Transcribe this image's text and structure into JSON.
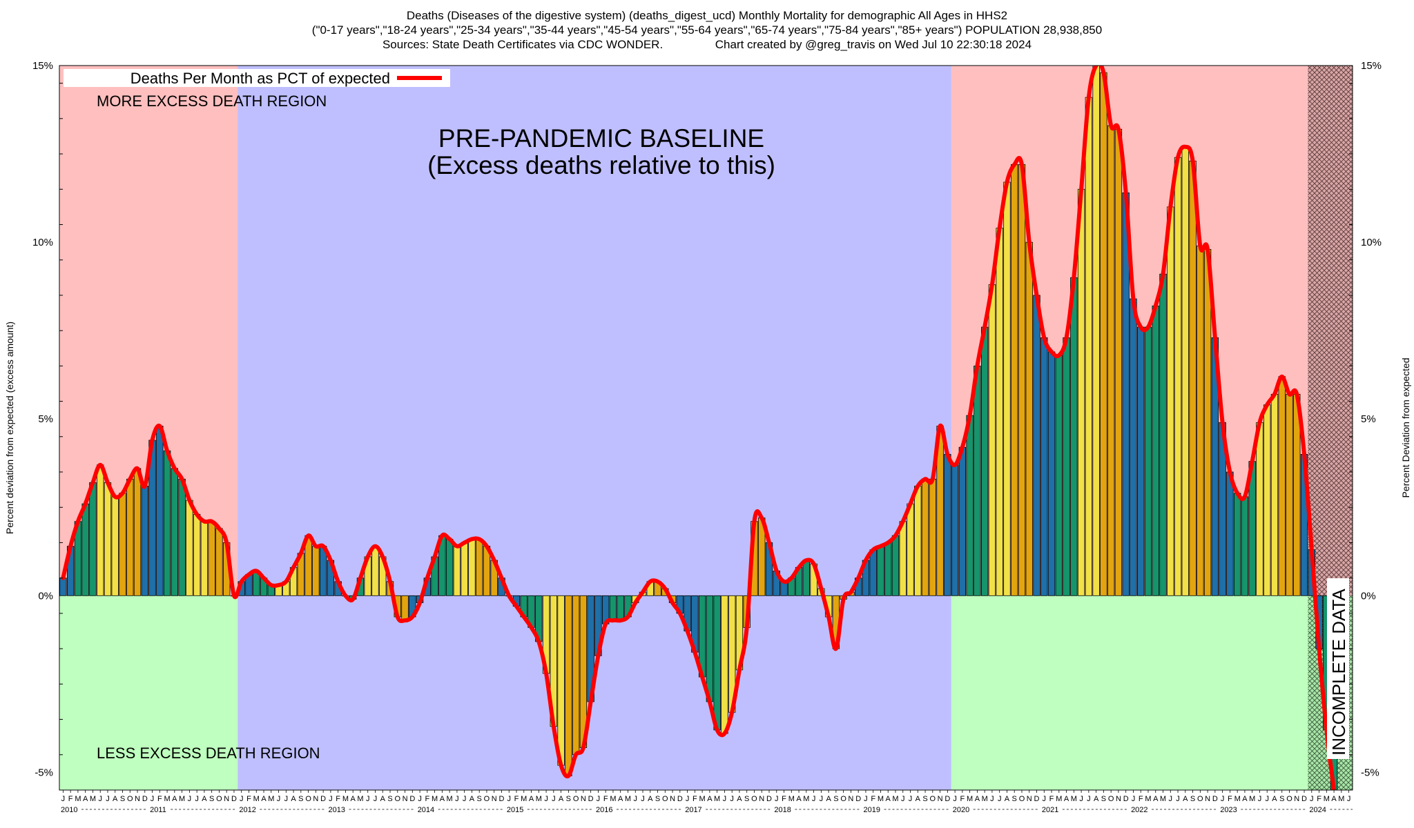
{
  "header": {
    "title_line1": "Deaths (Diseases of the digestive system) (deaths_digest_ucd) Monthly Mortality for demographic All Ages in HHS2",
    "title_line2": "(\"0-17 years\",\"18-24 years\",\"25-34 years\",\"35-44 years\",\"45-54 years\",\"55-64 years\",\"65-74 years\",\"75-84 years\",\"85+ years\") POPULATION 28,938,850",
    "sources": "Sources: State Death Certificates via CDC WONDER.",
    "credit": "Chart created by @greg_travis on Wed Jul 10 22:30:18 2024"
  },
  "chart_data": {
    "type": "bar",
    "ylabel_left": "Percent deviation from expected (excess amount)",
    "ylabel_right": "Percent Deviation from expected",
    "ylim": [
      -5.5,
      15
    ],
    "yticks": [
      -5,
      0,
      5,
      10,
      15
    ],
    "ytick_labels": [
      "-5%",
      "0%",
      "5%",
      "10%",
      "15%"
    ],
    "grid": false,
    "legend": {
      "position": "top-left",
      "label": "Deaths Per Month as PCT of expected",
      "color": "#ff0000"
    },
    "month_letters": [
      "J",
      "F",
      "M",
      "A",
      "M",
      "J",
      "J",
      "A",
      "S",
      "O",
      "N",
      "D"
    ],
    "years": [
      "2010",
      "2011",
      "2012",
      "2013",
      "2014",
      "2015",
      "2016",
      "2017",
      "2018",
      "2019",
      "2020",
      "2021",
      "2022",
      "2023",
      "2024"
    ],
    "x_start": "2010-01",
    "bar_colors": {
      "Winter": "#1f6fa8",
      "Spring": "#16946b",
      "Summer": "#f2e047",
      "Fall": "#e2a50f"
    },
    "series": [
      {
        "name": "Deaths Per Month as PCT of expected",
        "values": [
          0.5,
          1.4,
          2.1,
          2.6,
          3.2,
          3.7,
          3.2,
          2.8,
          2.9,
          3.3,
          3.6,
          3.1,
          4.4,
          4.8,
          4.1,
          3.6,
          3.3,
          2.7,
          2.3,
          2.1,
          2.1,
          1.9,
          1.5,
          0.0,
          0.4,
          0.6,
          0.7,
          0.5,
          0.3,
          0.3,
          0.4,
          0.8,
          1.2,
          1.7,
          1.4,
          1.4,
          1.0,
          0.4,
          0.0,
          -0.1,
          0.5,
          1.1,
          1.4,
          1.1,
          0.4,
          -0.6,
          -0.7,
          -0.6,
          -0.2,
          0.5,
          1.1,
          1.7,
          1.6,
          1.4,
          1.5,
          1.6,
          1.6,
          1.4,
          1.0,
          0.5,
          0.0,
          -0.3,
          -0.6,
          -0.9,
          -1.3,
          -2.2,
          -3.7,
          -4.8,
          -5.1,
          -4.5,
          -4.3,
          -3.0,
          -1.7,
          -0.8,
          -0.7,
          -0.7,
          -0.6,
          -0.2,
          0.1,
          0.4,
          0.4,
          0.2,
          -0.2,
          -0.5,
          -1.0,
          -1.6,
          -2.3,
          -3.0,
          -3.8,
          -3.9,
          -3.3,
          -2.1,
          -0.9,
          2.1,
          2.2,
          1.5,
          0.7,
          0.4,
          0.5,
          0.8,
          1.0,
          0.9,
          0.2,
          -0.6,
          -1.5,
          -0.1,
          0.1,
          0.5,
          1.0,
          1.3,
          1.4,
          1.5,
          1.7,
          2.1,
          2.6,
          3.1,
          3.3,
          3.3,
          4.8,
          4.0,
          3.7,
          4.2,
          5.1,
          6.5,
          7.6,
          8.8,
          10.4,
          11.7,
          12.2,
          12.2,
          10.0,
          8.5,
          7.3,
          6.9,
          6.8,
          7.3,
          9.0,
          11.5,
          14.1,
          15.0,
          14.8,
          13.3,
          13.2,
          11.4,
          8.4,
          7.6,
          7.6,
          8.2,
          9.1,
          11.0,
          12.4,
          12.7,
          12.3,
          9.9,
          9.8,
          7.3,
          4.9,
          3.5,
          2.9,
          2.8,
          3.8,
          4.9,
          5.4,
          5.7,
          6.2,
          5.7,
          5.7,
          4.0,
          1.3,
          -1.5,
          -3.8,
          -5.5
        ]
      }
    ],
    "regions": [
      {
        "label": "MORE EXCESS DEATH REGION",
        "color": "#ffbfbf"
      },
      {
        "label": "LESS EXCESS DEATH REGION",
        "color": "#bfffbf"
      },
      {
        "label": "PRE-PANDEMIC BASELINE",
        "sublabel": "(Excess deaths relative to this)",
        "color": "#bfbfff",
        "from": "2012-01",
        "to": "2020-01"
      },
      {
        "label": "INCOMPLETE DATA",
        "from": "2024-01",
        "to": "2024-06"
      }
    ]
  }
}
